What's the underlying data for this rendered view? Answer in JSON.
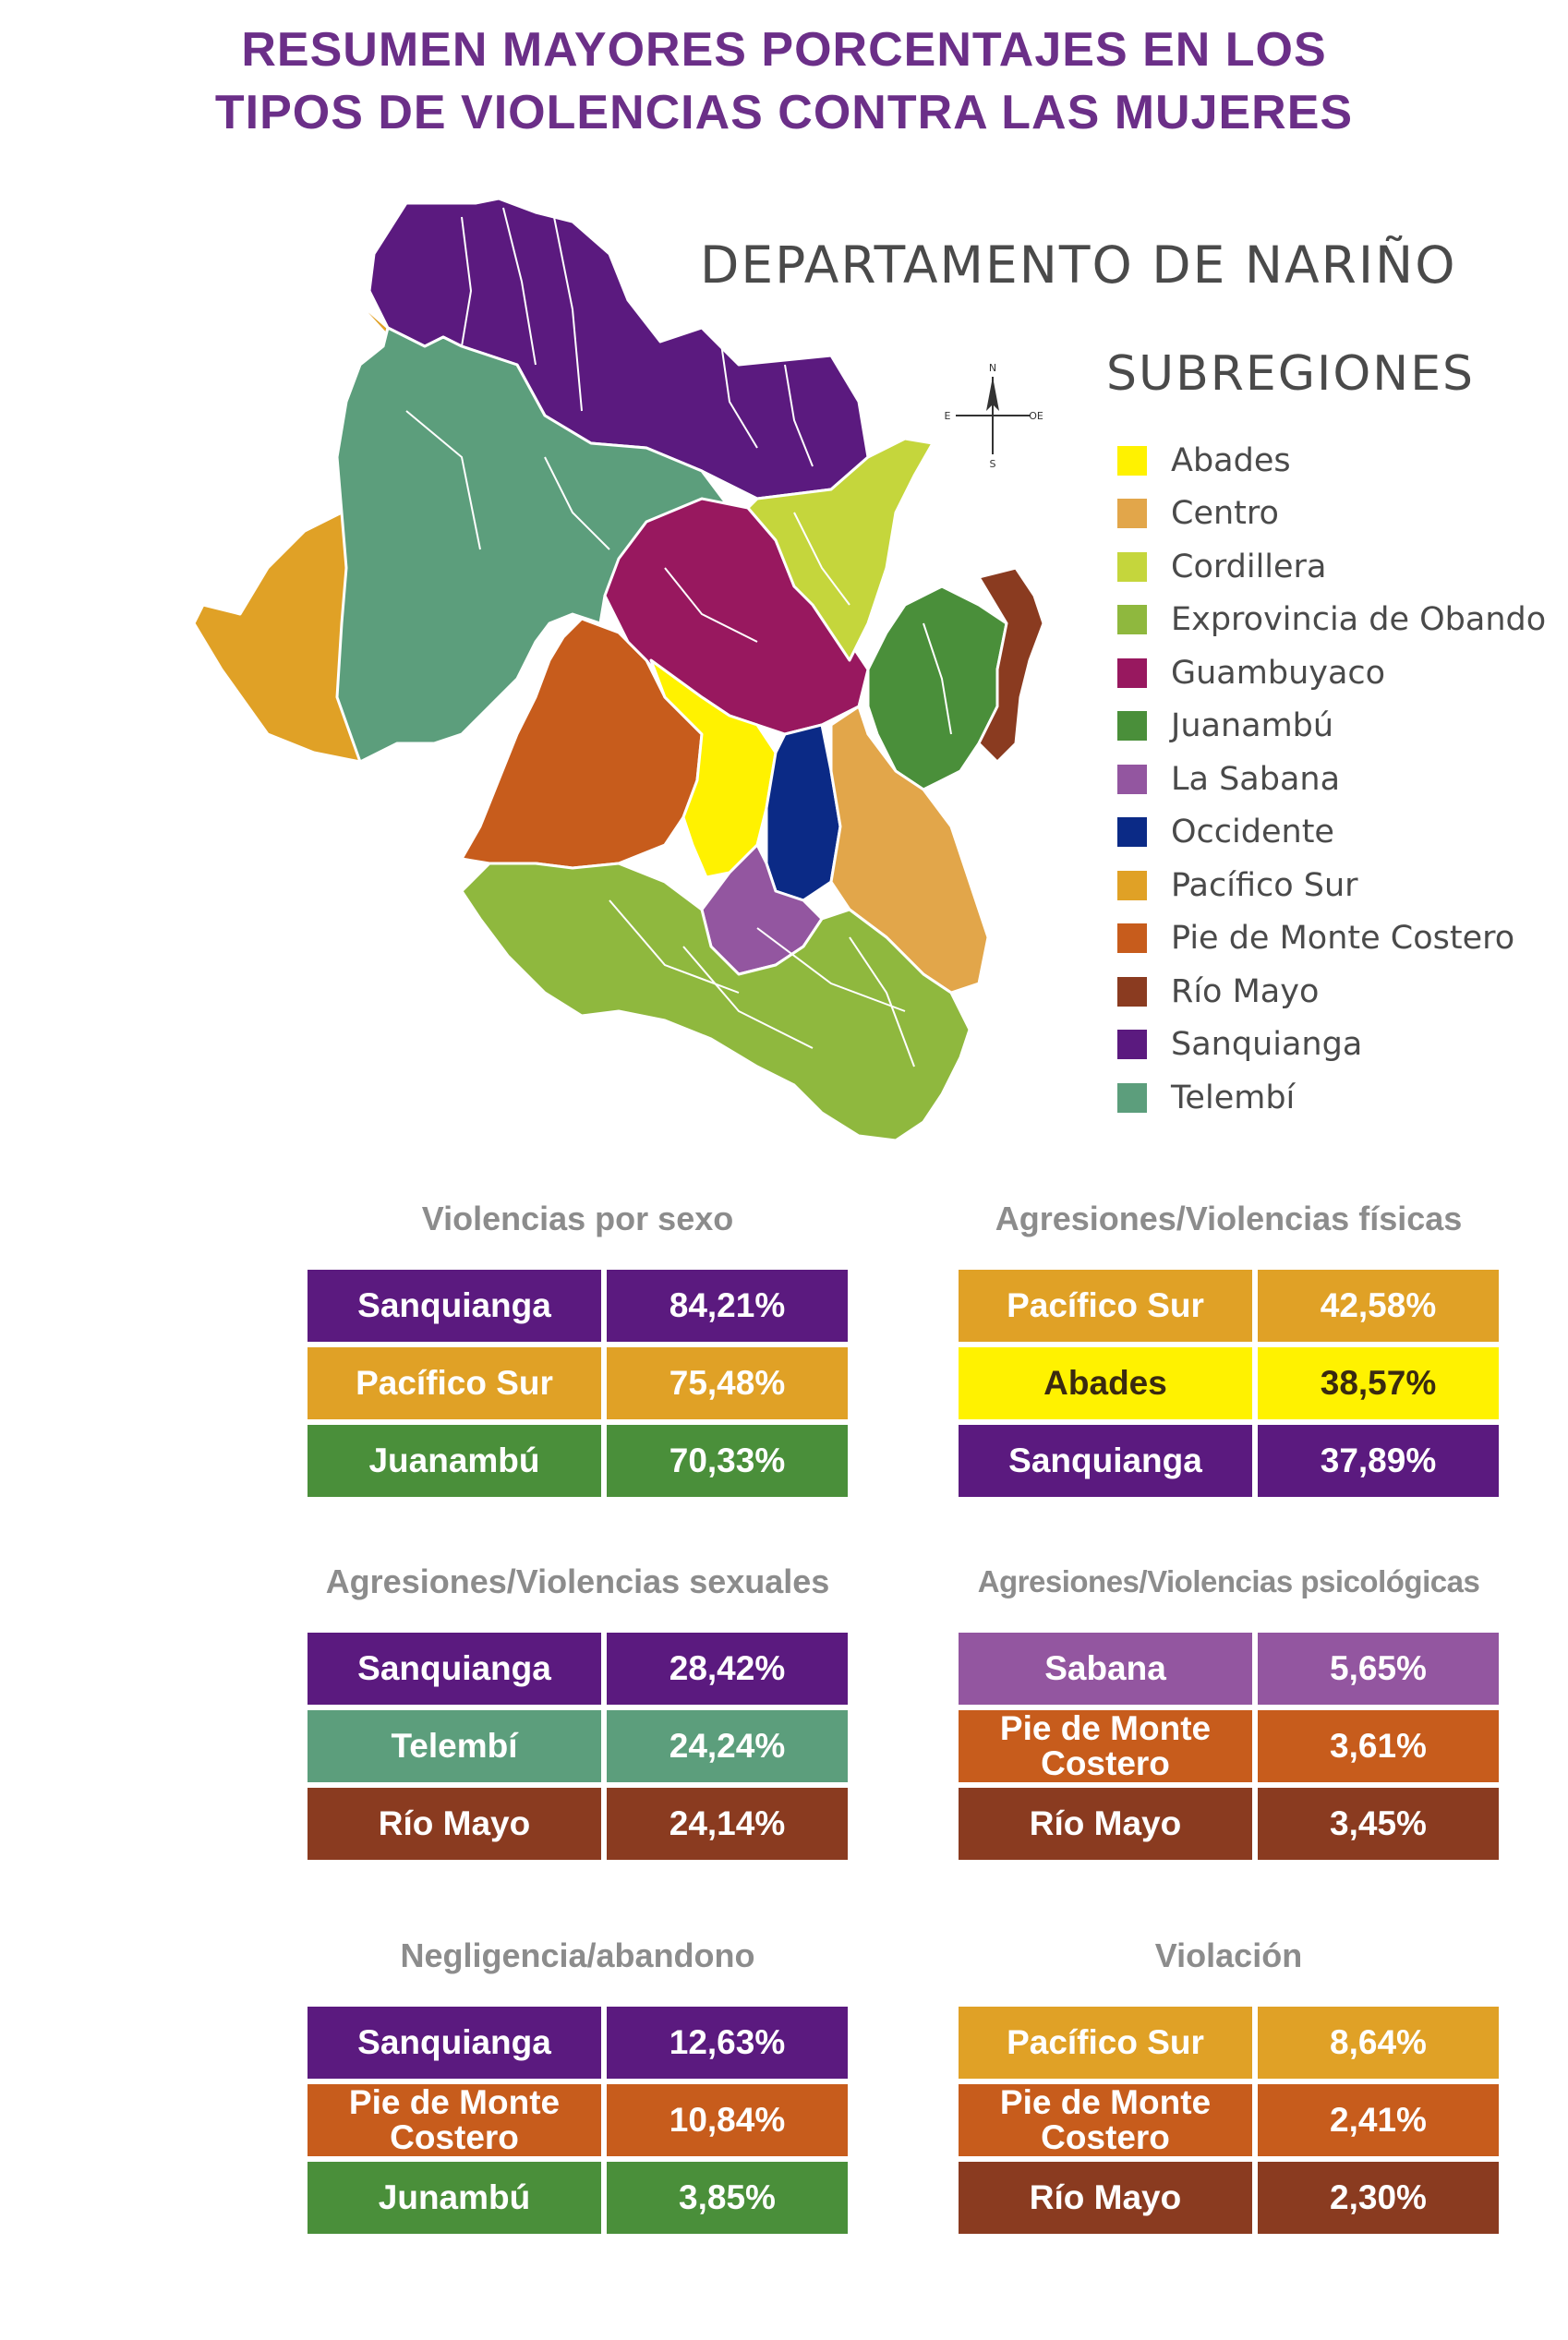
{
  "title_line1": "RESUMEN MAYORES PORCENTAJES EN LOS",
  "title_line2": "TIPOS DE VIOLENCIAS CONTRA LAS MUJERES",
  "map_title": "DEPARTAMENTO DE NARIÑO",
  "legend_title": "SUBREGIONES",
  "compass": {
    "n": "N",
    "s": "S",
    "e": "E",
    "w": "OE"
  },
  "legend": [
    {
      "label": "Abades",
      "color": "#fff200"
    },
    {
      "label": "Centro",
      "color": "#e2a64a"
    },
    {
      "label": "Cordillera",
      "color": "#c5d63c"
    },
    {
      "label": "Exprovincia de Obando",
      "color": "#8fb83e"
    },
    {
      "label": "Guambuyaco",
      "color": "#98185f"
    },
    {
      "label": "Juanambú",
      "color": "#4a8f3a"
    },
    {
      "label": "La Sabana",
      "color": "#9356a0"
    },
    {
      "label": "Occidente",
      "color": "#0b2a86"
    },
    {
      "label": "Pacífico Sur",
      "color": "#e0a126"
    },
    {
      "label": "Pie de Monte Costero",
      "color": "#c75c1c"
    },
    {
      "label": "Río Mayo",
      "color": "#8a3b20"
    },
    {
      "label": "Sanquianga",
      "color": "#5b1a7f"
    },
    {
      "label": "Telembí",
      "color": "#5c9e7c"
    }
  ],
  "panels": [
    {
      "title": "Violencias por sexo",
      "rows": [
        {
          "name": "Sanquianga",
          "value": "84,21%",
          "color": "#5b1a7f"
        },
        {
          "name": "Pacífico Sur",
          "value": "75,48%",
          "color": "#e0a126"
        },
        {
          "name": "Juanambú",
          "value": "70,33%",
          "color": "#4a8f3a"
        }
      ]
    },
    {
      "title": "Agresiones/Violencias físicas",
      "rows": [
        {
          "name": "Pacífico Sur",
          "value": "42,58%",
          "color": "#e0a126"
        },
        {
          "name": "Abades",
          "value": "38,57%",
          "color": "#fff200"
        },
        {
          "name": "Sanquianga",
          "value": "37,89%",
          "color": "#5b1a7f"
        }
      ]
    },
    {
      "title": "Agresiones/Violencias sexuales",
      "rows": [
        {
          "name": "Sanquianga",
          "value": "28,42%",
          "color": "#5b1a7f"
        },
        {
          "name": "Telembí",
          "value": "24,24%",
          "color": "#5c9e7c"
        },
        {
          "name": "Río Mayo",
          "value": "24,14%",
          "color": "#8a3b20"
        }
      ]
    },
    {
      "title": "Agresiones/Violencias psicológicas",
      "rows": [
        {
          "name": "Sabana",
          "value": "5,65%",
          "color": "#9356a0"
        },
        {
          "name": "Pie de Monte Costero",
          "value": "3,61%",
          "color": "#c75c1c"
        },
        {
          "name": "Río Mayo",
          "value": "3,45%",
          "color": "#8a3b20"
        }
      ]
    },
    {
      "title": "Negligencia/abandono",
      "rows": [
        {
          "name": "Sanquianga",
          "value": "12,63%",
          "color": "#5b1a7f"
        },
        {
          "name": "Pie de Monte Costero",
          "value": "10,84%",
          "color": "#c75c1c"
        },
        {
          "name": "Junambú",
          "value": "3,85%",
          "color": "#4a8f3a"
        }
      ]
    },
    {
      "title": "Violación",
      "rows": [
        {
          "name": "Pacífico Sur",
          "value": "8,64%",
          "color": "#e0a126"
        },
        {
          "name": "Pie de Monte Costero",
          "value": "2,41%",
          "color": "#c75c1c"
        },
        {
          "name": "Río Mayo",
          "value": "2,30%",
          "color": "#8a3b20"
        }
      ]
    }
  ]
}
